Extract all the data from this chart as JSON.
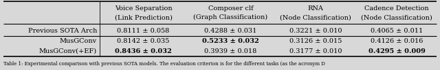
{
  "col_headers_line1": [
    "Voice Separation",
    "Composer clf",
    "RNA",
    "Cadence Detection"
  ],
  "col_headers_line2": [
    "(Link Prediction)",
    "(Graph Classification)",
    "(Node Classification)",
    "(Node Classification)"
  ],
  "row_labels": [
    "Previous SOTA Arch",
    "MusGConv",
    "MusGConv(+EF)"
  ],
  "cells": [
    [
      "0.8111 ± 0.058",
      "0.4288 ± 0.031",
      "0.3221 ± 0.010",
      "0.4065 ± 0.011"
    ],
    [
      "0.8142 ± 0.035",
      "0.5233 ± 0.032",
      "0.3126 ± 0.015",
      "0.4126 ± 0.016"
    ],
    [
      "0.8436 ± 0.032",
      "0.3939 ± 0.018",
      "0.3177 ± 0.010",
      "0.4295 ± 0.009"
    ]
  ],
  "bold_cells": [
    [
      false,
      false,
      false,
      false
    ],
    [
      false,
      true,
      false,
      false
    ],
    [
      true,
      false,
      false,
      true
    ]
  ],
  "caption": "Table 1: Experimental comparison with previous SOTA models. The evaluation criterion is for the different tasks (as the acronym D",
  "bg_color": "#d8d8d8",
  "figsize": [
    6.4,
    1.03
  ],
  "dpi": 100,
  "fontsize": 7.0,
  "caption_fontsize": 5.0
}
